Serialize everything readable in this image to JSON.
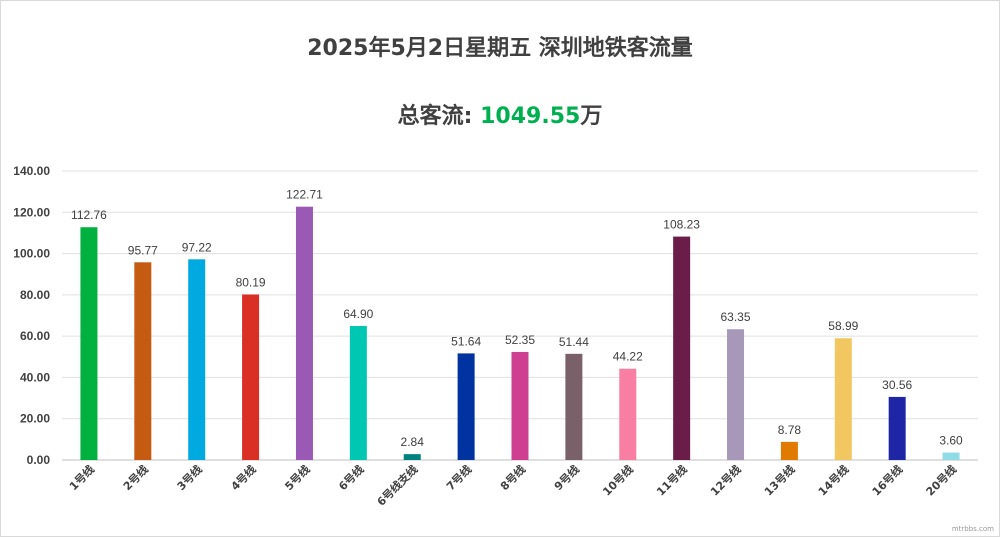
{
  "header": {
    "title": "2025年5月2日星期五  深圳地铁客流量",
    "total_label": "总客流: ",
    "total_value": "1049.55",
    "total_unit": "万"
  },
  "watermark": "mtrbbs.com",
  "chart_data": {
    "type": "bar",
    "categories": [
      "1号线",
      "2号线",
      "3号线",
      "4号线",
      "5号线",
      "6号线",
      "6号线支线",
      "7号线",
      "8号线",
      "9号线",
      "10号线",
      "11号线",
      "12号线",
      "13号线",
      "14号线",
      "16号线",
      "20号线"
    ],
    "values": [
      112.76,
      95.77,
      97.22,
      80.19,
      122.71,
      64.9,
      2.84,
      51.64,
      52.35,
      51.44,
      44.22,
      108.23,
      63.35,
      8.78,
      58.99,
      30.56,
      3.6
    ],
    "value_labels": [
      "112.76",
      "95.77",
      "97.22",
      "80.19",
      "122.71",
      "64.90",
      "2.84",
      "51.64",
      "52.35",
      "51.44",
      "44.22",
      "108.23",
      "63.35",
      "8.78",
      "58.99",
      "30.56",
      "3.60"
    ],
    "colors": [
      "#00b140",
      "#c55a11",
      "#00a9e0",
      "#d92f25",
      "#9b59b6",
      "#00c7b1",
      "#00827f",
      "#0033a0",
      "#cf3f91",
      "#7a6068",
      "#f87fa3",
      "#6b1d4a",
      "#a797b8",
      "#e07b00",
      "#f2c660",
      "#1f26a6",
      "#8fdbe6"
    ],
    "ylim": [
      0,
      140
    ],
    "yticks": [
      "0.00",
      "20.00",
      "40.00",
      "60.00",
      "80.00",
      "100.00",
      "120.00",
      "140.00"
    ],
    "grid": true,
    "legend": "none"
  }
}
